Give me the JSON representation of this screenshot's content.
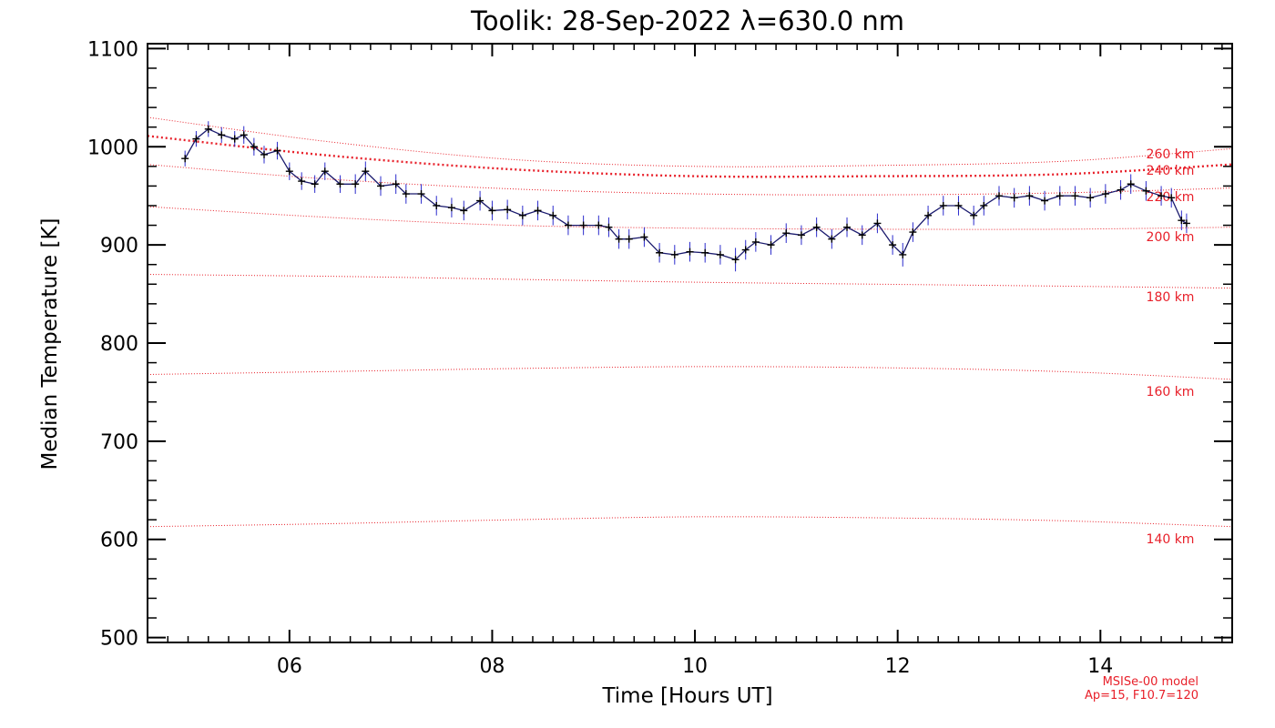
{
  "chart_data": {
    "type": "line",
    "title": "Toolik: 28-Sep-2022 λ=630.0 nm",
    "xlabel": "Time [Hours UT]",
    "ylabel": "Median Temperature [K]",
    "xlim": [
      4.6,
      15.3
    ],
    "ylim": [
      495,
      1105
    ],
    "x_ticks": [
      6,
      8,
      10,
      12,
      14
    ],
    "x_tick_labels": [
      "06",
      "08",
      "10",
      "12",
      "14"
    ],
    "y_ticks": [
      500,
      600,
      700,
      800,
      900,
      1000,
      1100
    ],
    "y_tick_labels": [
      "500",
      "600",
      "700",
      "800",
      "900",
      "1000",
      "1100"
    ],
    "colors": {
      "data": "#1a1a6e",
      "errorbar": "#2b2bcc",
      "model": "#e8202a"
    },
    "series": [
      {
        "x": [
          4.97,
          5.08,
          5.2,
          5.33,
          5.46,
          5.55,
          5.65,
          5.75,
          5.88,
          6.0,
          6.12,
          6.25,
          6.35,
          6.5,
          6.65,
          6.75,
          6.9,
          7.05,
          7.15,
          7.3,
          7.45,
          7.6,
          7.72,
          7.88,
          8.0,
          8.15,
          8.3,
          8.45,
          8.6,
          8.75,
          8.9,
          9.05,
          9.15,
          9.25,
          9.35,
          9.5,
          9.65,
          9.8,
          9.95,
          10.1,
          10.25,
          10.4,
          10.5,
          10.6,
          10.75,
          10.9,
          11.05,
          11.2,
          11.35,
          11.5,
          11.65,
          11.8,
          11.95,
          12.05,
          12.15,
          12.3,
          12.45,
          12.6,
          12.75,
          12.85,
          13.0,
          13.15,
          13.3,
          13.45,
          13.6,
          13.75,
          13.9,
          14.05,
          14.2,
          14.3,
          14.45,
          14.6,
          14.7,
          14.8,
          14.85
        ],
        "y": [
          988,
          1008,
          1018,
          1012,
          1008,
          1012,
          1000,
          992,
          996,
          975,
          965,
          962,
          975,
          962,
          962,
          975,
          960,
          962,
          952,
          952,
          940,
          938,
          935,
          945,
          935,
          936,
          930,
          935,
          930,
          920,
          920,
          920,
          918,
          906,
          906,
          908,
          892,
          890,
          893,
          892,
          890,
          885,
          895,
          903,
          900,
          912,
          910,
          918,
          906,
          918,
          910,
          922,
          900,
          890,
          913,
          930,
          940,
          940,
          930,
          940,
          950,
          948,
          950,
          945,
          950,
          950,
          948,
          952,
          956,
          962,
          955,
          950,
          948,
          925,
          922
        ],
        "yerr": [
          8,
          8,
          8,
          8,
          8,
          9,
          9,
          9,
          9,
          9,
          9,
          9,
          9,
          9,
          10,
          10,
          10,
          10,
          10,
          10,
          10,
          10,
          10,
          10,
          10,
          10,
          10,
          10,
          10,
          10,
          10,
          10,
          10,
          10,
          10,
          10,
          10,
          10,
          10,
          10,
          10,
          12,
          10,
          10,
          10,
          10,
          10,
          10,
          10,
          10,
          10,
          10,
          10,
          12,
          10,
          10,
          10,
          10,
          10,
          10,
          10,
          10,
          10,
          10,
          10,
          10,
          10,
          10,
          10,
          10,
          10,
          10,
          10,
          10,
          10
        ]
      }
    ],
    "model_curves": [
      {
        "label": "260 km",
        "highlight": true,
        "y": [
          1011,
          991,
          977,
          970,
          970,
          972,
          982
        ]
      },
      {
        "label": "240 km",
        "highlight": false,
        "y": [
          1030,
          1005,
          987,
          980,
          981,
          985,
          998
        ]
      },
      {
        "label": "220 km",
        "highlight": false,
        "y": [
          982,
          967,
          957,
          952,
          951,
          953,
          958
        ]
      },
      {
        "label": "200 km",
        "highlight": false,
        "y": [
          939,
          928,
          920,
          917,
          916,
          916,
          918
        ]
      },
      {
        "label": "180 km",
        "highlight": false,
        "y": [
          870,
          868,
          865,
          862,
          860,
          858,
          856
        ]
      },
      {
        "label": "160 km",
        "highlight": false,
        "y": [
          768,
          771,
          774,
          776,
          775,
          771,
          763
        ]
      },
      {
        "label": "140 km",
        "highlight": false,
        "y": [
          613,
          616,
          620,
          623,
          622,
          619,
          613
        ]
      }
    ],
    "model_x": [
      4.6,
      6.4,
      8.2,
      10.0,
      11.8,
      13.6,
      15.3
    ],
    "annotations": [
      "MSISe-00 model",
      "Ap=15, F10.7=120"
    ]
  }
}
